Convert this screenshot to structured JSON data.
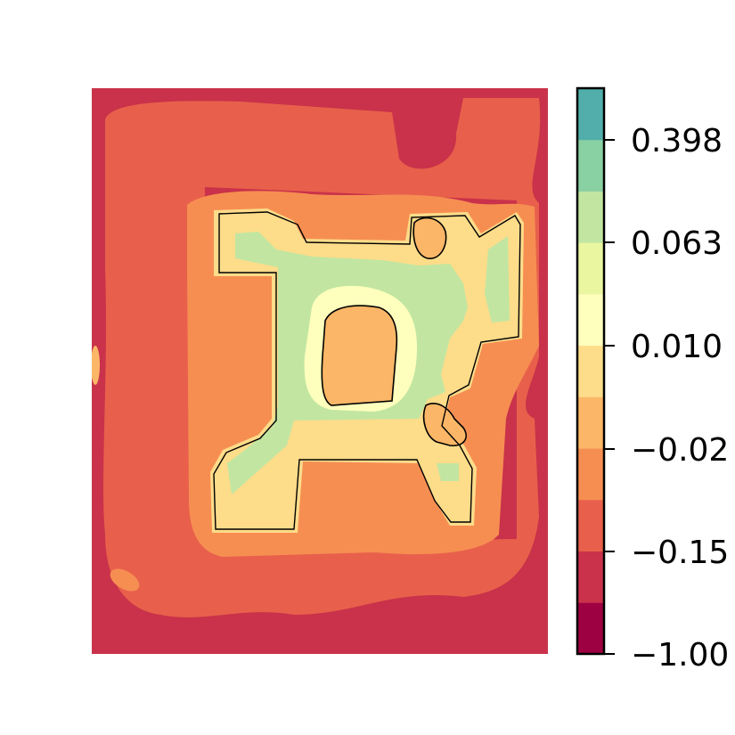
{
  "chart_data": {
    "type": "heatmap",
    "plot_kind": "filled contour",
    "title": "",
    "xlabel": "",
    "ylabel": "",
    "axes_visible": false,
    "grid": false,
    "colormap": "Spectral",
    "colorbar": {
      "position": "right",
      "tick_labels": [
        "0.398",
        "0.063",
        "0.010",
        "−0.02",
        "−0.15",
        "−1.00"
      ],
      "levels": 11,
      "colors": [
        "#9e0142",
        "#c9324a",
        "#e8604b",
        "#f68e52",
        "#fbb767",
        "#fddc8a",
        "#fefebd",
        "#eaf6a0",
        "#c2e6a1",
        "#89d0a3",
        "#51aeaa"
      ]
    },
    "regions": {
      "outer_background_level": "−0.15 band",
      "inner_structure_level": "0.010 to 0.063 band",
      "central_island_level": "−0.02 band"
    }
  }
}
